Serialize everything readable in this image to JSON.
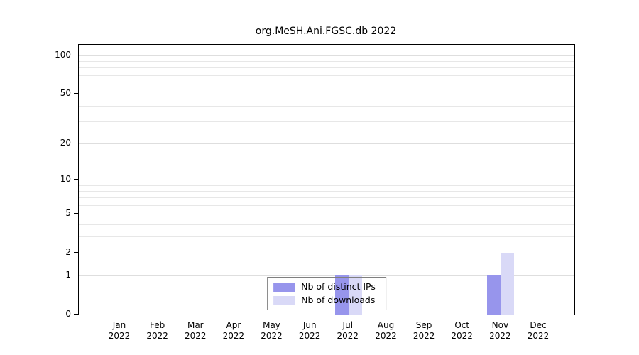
{
  "chart_data": {
    "type": "bar",
    "title": "org.MeSH.Ani.FGSC.db 2022",
    "categories": [
      "Jan",
      "Feb",
      "Mar",
      "Apr",
      "May",
      "Jun",
      "Jul",
      "Aug",
      "Sep",
      "Oct",
      "Nov",
      "Dec"
    ],
    "category_year": "2022",
    "series": [
      {
        "name": "Nb of distinct IPs",
        "color": "#9795ec",
        "values": [
          0,
          0,
          0,
          0,
          0,
          0,
          1,
          0,
          0,
          0,
          1,
          0
        ]
      },
      {
        "name": "Nb of downloads",
        "color": "#d9d9f7",
        "values": [
          0,
          0,
          0,
          0,
          0,
          0,
          1,
          0,
          0,
          0,
          2,
          0
        ]
      }
    ],
    "y_ticks": [
      0,
      1,
      2,
      5,
      10,
      20,
      50,
      100
    ],
    "y_scale": "log10(value+1)",
    "ylim": [
      0,
      100
    ],
    "grid": true,
    "legend_position": "bottom-center",
    "colors": {
      "axis": "#000000",
      "gridline": "#e7e7e7",
      "legend_border": "#7f7f7f",
      "background": "#ffffff"
    }
  }
}
